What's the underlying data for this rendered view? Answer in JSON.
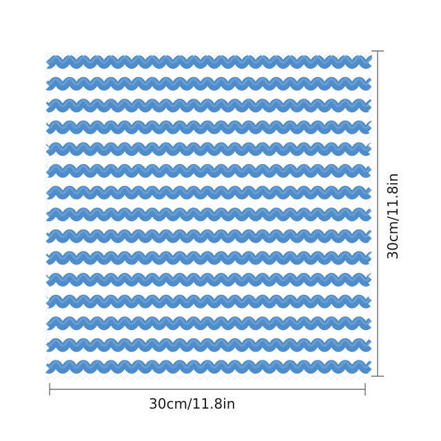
{
  "product": {
    "stripe_color": "#3f82c6",
    "base_color": "#ffffff"
  },
  "dimensions": {
    "width_label": "30cm/11.8in",
    "height_label": "30cm/11.8in"
  }
}
